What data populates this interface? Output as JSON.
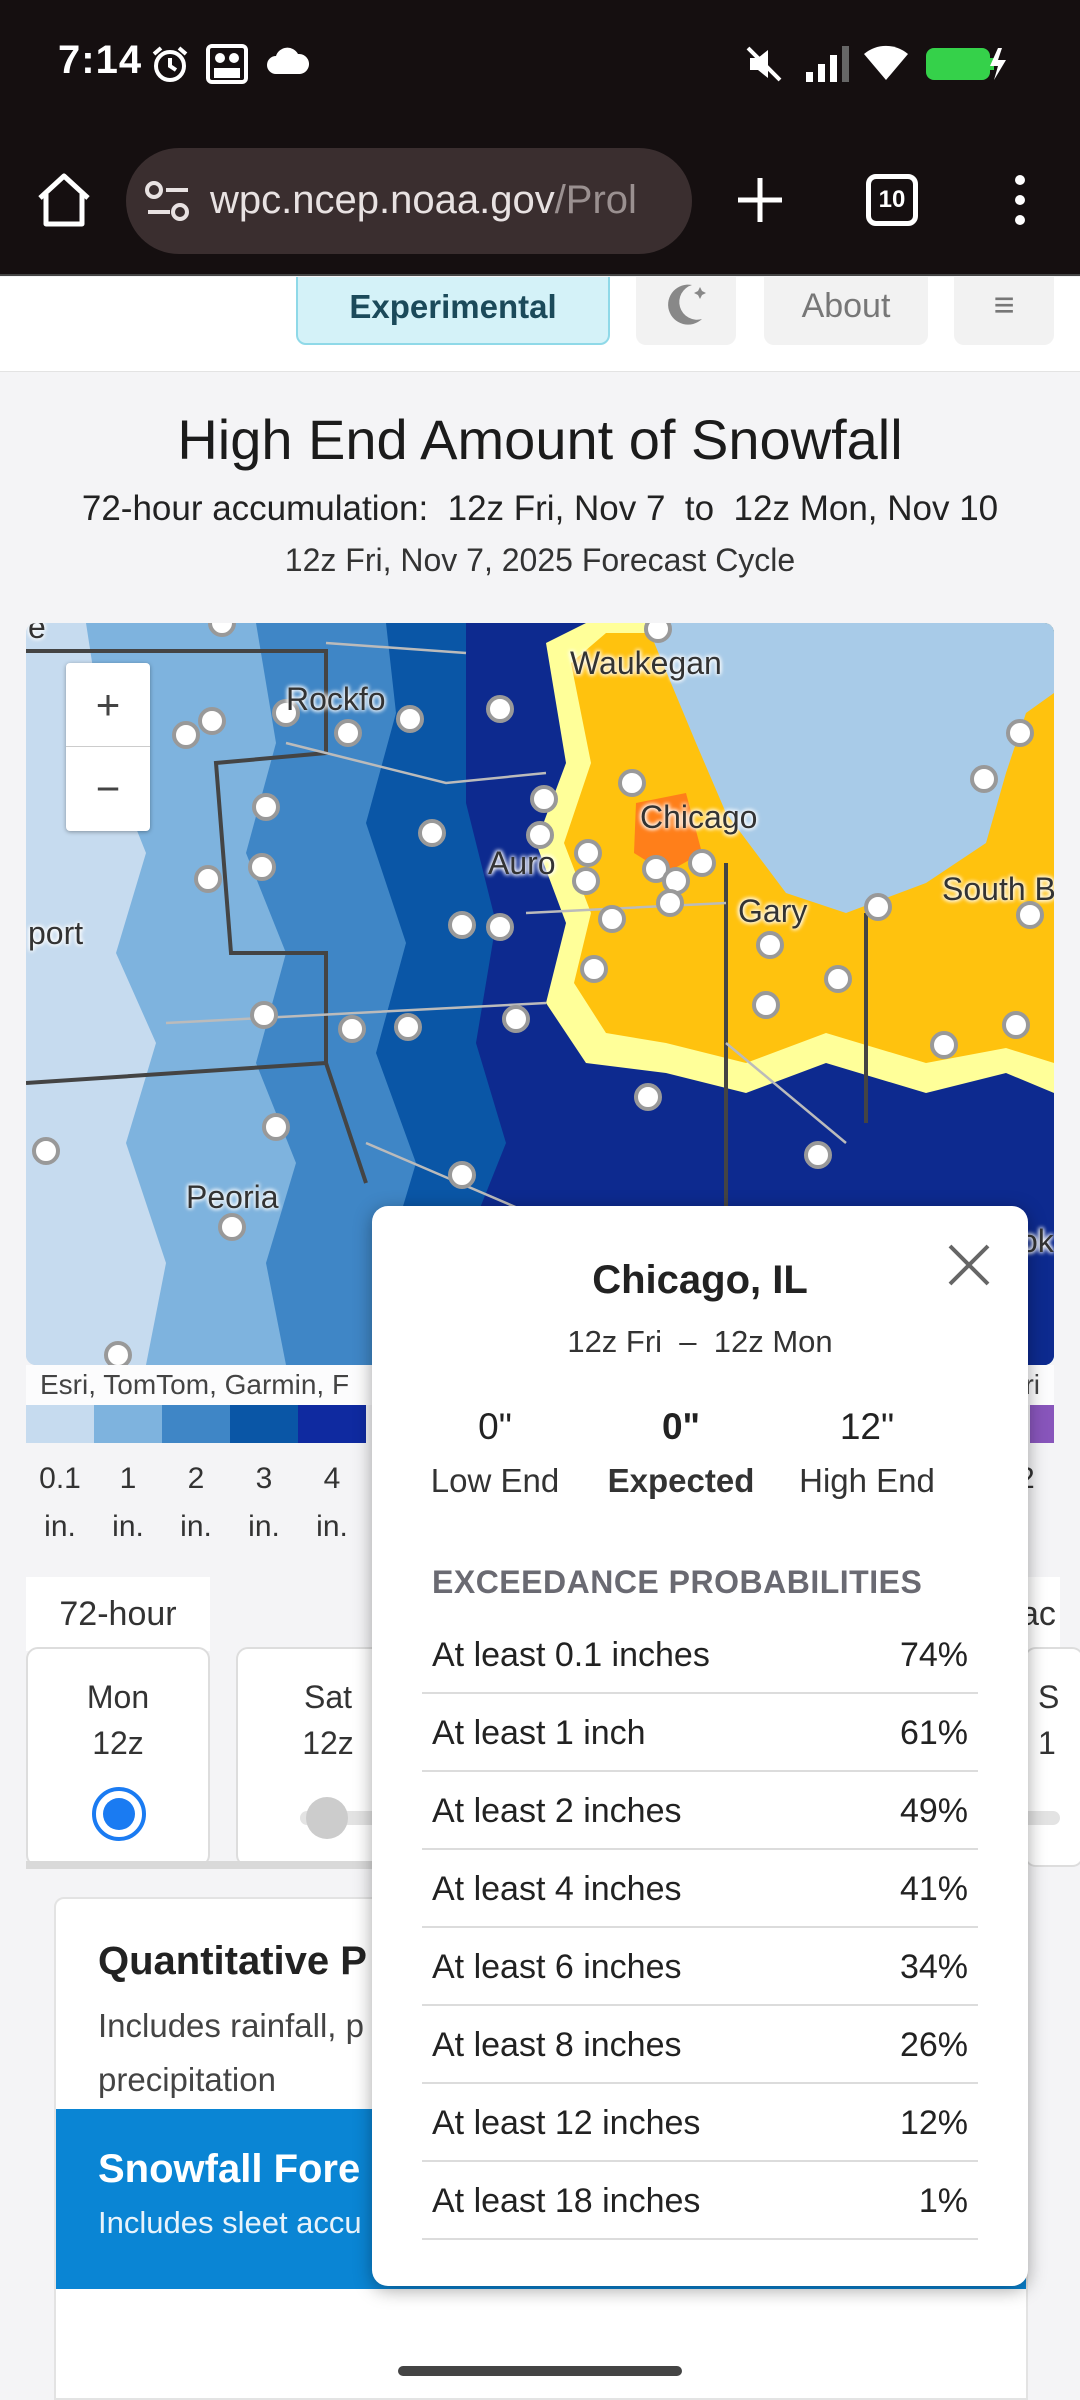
{
  "status_bar": {
    "time": "7:14",
    "icons": [
      "alarm-icon",
      "photos-icon",
      "cloud-icon",
      "mute-icon",
      "signal-icon",
      "wifi-icon",
      "battery-charging-icon"
    ]
  },
  "browser": {
    "url_main": "wpc.ncep.noaa.gov",
    "url_rest": "/Prol",
    "tab_count": "10"
  },
  "nav": {
    "experimental": "Experimental",
    "about": "About",
    "menu": "≡"
  },
  "header": {
    "title": "High End Amount of Snowfall",
    "accumulation": "72-hour accumulation:  12z Fri, Nov 7  to  12z Mon, Nov 10",
    "cycle": "12z Fri, Nov 7, 2025 Forecast Cycle"
  },
  "map": {
    "zoom_in": "+",
    "zoom_out": "−",
    "attribution": "Esri, TomTom, Garmin, F",
    "attribution_tail": "ri",
    "cities": {
      "waukegan": "Waukegan",
      "rockford": "Rockfo",
      "chicago": "Chicago",
      "aurora": "Auro",
      "gary": "Gary",
      "south_bend": "South B",
      "freeport": "port",
      "peoria": "Peoria",
      "edge_top": "e",
      "edge_right": "ok"
    }
  },
  "legend": {
    "colors": [
      "#c6dbef",
      "#7eb3de",
      "#3f86c6",
      "#0a56a6",
      "#0f2aa0"
    ],
    "labels": [
      {
        "value": "0.1",
        "unit": "in."
      },
      {
        "value": "1",
        "unit": "in."
      },
      {
        "value": "2",
        "unit": "in."
      },
      {
        "value": "3",
        "unit": "in."
      },
      {
        "value": "4",
        "unit": "in."
      }
    ],
    "right_color": "#8855bb",
    "right_fragment_value": "2",
    "right_fragment_unit": "."
  },
  "time_controls": {
    "hour_tab": "72-hour",
    "accum_tab_fragment": "ac",
    "cards": [
      {
        "day": "Mon",
        "time": "12z",
        "selected": true
      },
      {
        "day": "Sat",
        "time": "12z",
        "selected": false
      }
    ],
    "edge_card": {
      "day": "S",
      "time": "1"
    }
  },
  "products": {
    "qpf_title": "Quantitative P",
    "qpf_desc": "Includes rainfall, p precipitation",
    "qpf_desc_line1": "Includes rainfall, p",
    "qpf_desc_line2": "precipitation",
    "snow_title": "Snowfall Fore",
    "snow_desc": "Includes sleet accu"
  },
  "popup": {
    "city": "Chicago, IL",
    "range": "12z Fri  –  12z Mon",
    "stats": [
      {
        "value": "0\"",
        "label": "Low End"
      },
      {
        "value": "0\"",
        "label": "Expected"
      },
      {
        "value": "12\"",
        "label": "High End"
      }
    ],
    "exceedance_heading": "EXCEEDANCE PROBABILITIES",
    "exceedance": [
      {
        "label": "At least 0.1 inches",
        "pct": "74%"
      },
      {
        "label": "At least 1 inch",
        "pct": "61%"
      },
      {
        "label": "At least 2 inches",
        "pct": "49%"
      },
      {
        "label": "At least 4 inches",
        "pct": "41%"
      },
      {
        "label": "At least 6 inches",
        "pct": "34%"
      },
      {
        "label": "At least 8 inches",
        "pct": "26%"
      },
      {
        "label": "At least 12 inches",
        "pct": "12%"
      },
      {
        "label": "At least 18 inches",
        "pct": "1%"
      }
    ]
  },
  "snow_colors": {
    "navy": "#0d2a8f",
    "yellow": "#ffc20e",
    "pale_yellow": "#ffff99",
    "orange": "#ff7f1a",
    "lake": "#a8cbe8"
  }
}
